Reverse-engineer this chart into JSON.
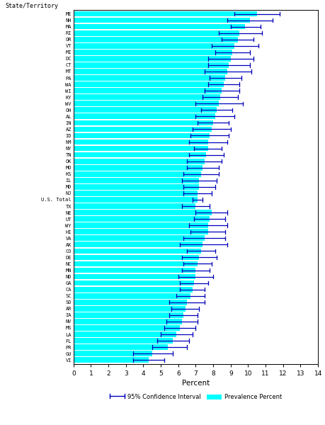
{
  "xlabel": "Percent",
  "ylabel": "State/Territory",
  "xlim": [
    0,
    14
  ],
  "bar_color": "#00FFFF",
  "ci_color": "#0000BB",
  "figsize": [
    4.59,
    6.0
  ],
  "dpi": 100,
  "states_ordered": [
    "ME",
    "NH",
    "MA",
    "RI",
    "OR",
    "VT",
    "MI",
    "DC",
    "CT",
    "MT",
    "PA",
    "WA",
    "WI",
    "KY",
    "WV",
    "OH",
    "AL",
    "IN",
    "AZ",
    "ID",
    "NM",
    "NY",
    "TN",
    "OK",
    "MO",
    "KS",
    "IL",
    "MD",
    "NJ",
    "U.S. Total",
    "TX",
    "NE",
    "UT",
    "WY",
    "HI",
    "VA",
    "AK",
    "CO",
    "DE",
    "NC",
    "MN",
    "ND",
    "GA",
    "CA",
    "SC",
    "SD",
    "AR",
    "IA",
    "NV",
    "MS",
    "LA",
    "FL",
    "PR",
    "GU",
    "VI"
  ],
  "prevalence": [
    10.5,
    10.1,
    9.8,
    9.5,
    9.4,
    9.2,
    9.1,
    9.0,
    8.9,
    8.8,
    8.7,
    8.6,
    8.5,
    8.4,
    8.3,
    8.2,
    8.1,
    8.0,
    7.9,
    7.8,
    7.7,
    7.7,
    7.6,
    7.5,
    7.4,
    7.3,
    7.2,
    7.2,
    7.1,
    7.1,
    7.0,
    7.9,
    7.8,
    7.7,
    7.7,
    7.5,
    7.4,
    7.3,
    7.2,
    7.1,
    7.0,
    7.0,
    6.9,
    6.8,
    6.7,
    6.5,
    6.4,
    6.3,
    6.2,
    6.1,
    5.9,
    5.7,
    5.4,
    4.5,
    4.3
  ],
  "ci_low": [
    9.2,
    8.8,
    9.0,
    8.3,
    8.5,
    7.9,
    8.1,
    7.7,
    7.7,
    7.5,
    7.8,
    7.7,
    7.5,
    7.4,
    7.0,
    7.3,
    7.0,
    7.1,
    6.8,
    6.7,
    6.6,
    6.9,
    6.6,
    6.5,
    6.5,
    6.3,
    6.2,
    6.3,
    6.3,
    6.8,
    6.2,
    7.0,
    6.9,
    6.6,
    6.7,
    6.3,
    6.1,
    6.5,
    6.2,
    6.3,
    6.2,
    6.0,
    6.1,
    6.1,
    5.9,
    5.5,
    5.6,
    5.5,
    5.3,
    5.2,
    5.0,
    4.8,
    4.5,
    3.4,
    3.4
  ],
  "ci_high": [
    11.8,
    11.4,
    10.7,
    10.8,
    10.3,
    10.6,
    10.1,
    10.3,
    10.1,
    10.2,
    9.6,
    9.5,
    9.5,
    9.4,
    9.7,
    9.1,
    9.2,
    8.9,
    9.0,
    8.9,
    8.8,
    8.5,
    8.6,
    8.5,
    8.3,
    8.3,
    8.2,
    8.1,
    7.9,
    7.4,
    7.8,
    8.8,
    8.7,
    8.8,
    8.7,
    8.7,
    8.8,
    8.1,
    8.2,
    7.9,
    7.8,
    8.0,
    7.7,
    7.5,
    7.5,
    7.5,
    7.2,
    7.1,
    7.1,
    7.0,
    6.8,
    6.6,
    6.5,
    5.7,
    5.2
  ]
}
